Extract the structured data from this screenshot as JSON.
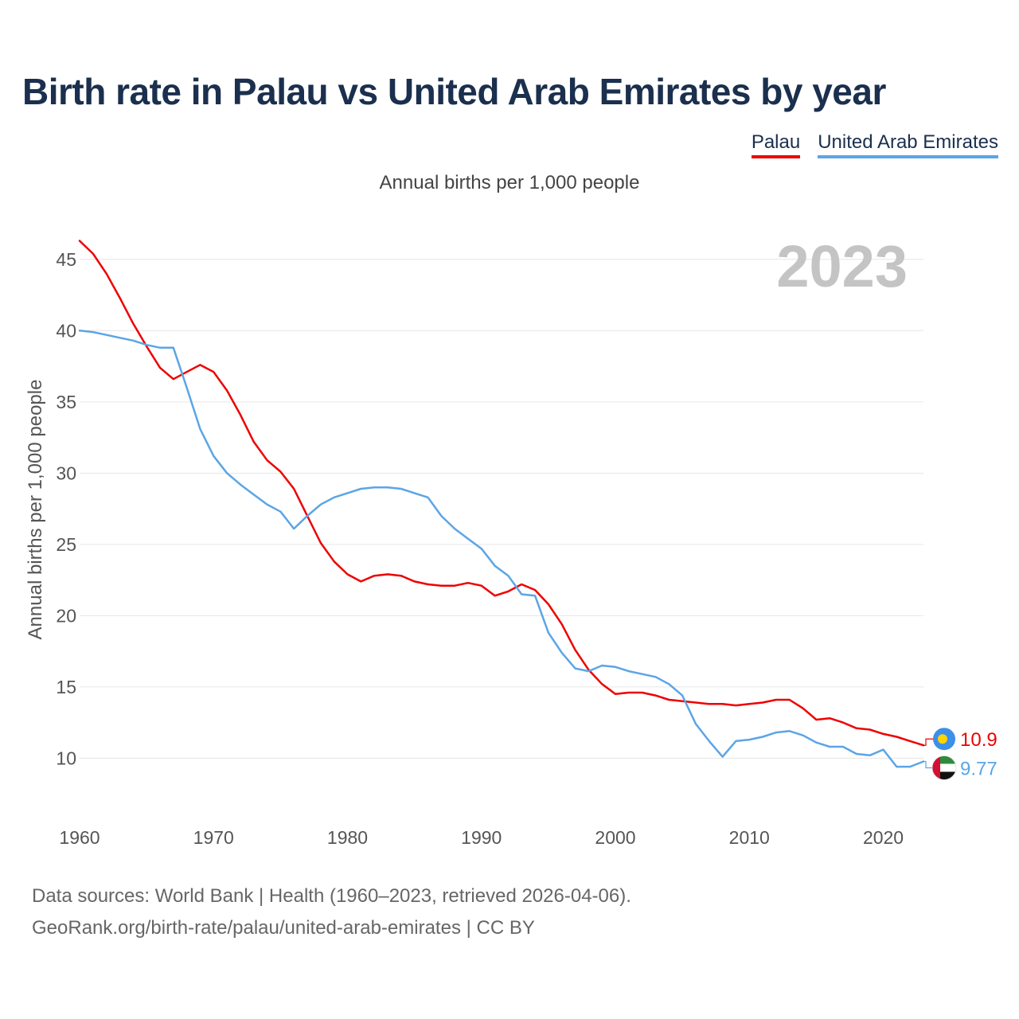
{
  "title": "Birth rate in Palau vs United Arab Emirates by year",
  "subtitle": "Annual births per 1,000 people",
  "legend": [
    {
      "name": "Palau",
      "color": "#ee0000"
    },
    {
      "name": "United Arab Emirates",
      "color": "#5ba5e6"
    }
  ],
  "year_stamp": "2023",
  "source_line1": "Data sources: World Bank | Health (1960–2023, retrieved 2026-04-06).",
  "source_line2": "GeoRank.org/birth-rate/palau/united-arab-emirates | CC BY",
  "chart_data": {
    "type": "line",
    "title": "Birth rate in Palau vs United Arab Emirates by year",
    "xlabel": "",
    "ylabel": "Annual births per 1,000 people",
    "xlim": [
      1960,
      2023
    ],
    "ylim": [
      6.5,
      47
    ],
    "xticks": [
      1960,
      1970,
      1980,
      1990,
      2000,
      2010,
      2020
    ],
    "yticks": [
      10,
      15,
      20,
      25,
      30,
      35,
      40,
      45
    ],
    "grid": true,
    "legend_position": "top-right",
    "x": [
      1960,
      1961,
      1962,
      1963,
      1964,
      1965,
      1966,
      1967,
      1968,
      1969,
      1970,
      1971,
      1972,
      1973,
      1974,
      1975,
      1976,
      1977,
      1978,
      1979,
      1980,
      1981,
      1982,
      1983,
      1984,
      1985,
      1986,
      1987,
      1988,
      1989,
      1990,
      1991,
      1992,
      1993,
      1994,
      1995,
      1996,
      1997,
      1998,
      1999,
      2000,
      2001,
      2002,
      2003,
      2004,
      2005,
      2006,
      2007,
      2008,
      2009,
      2010,
      2011,
      2012,
      2013,
      2014,
      2015,
      2016,
      2017,
      2018,
      2019,
      2020,
      2021,
      2022,
      2023
    ],
    "series": [
      {
        "name": "Palau",
        "color": "#ee0000",
        "values": [
          46.3,
          45.4,
          44.0,
          42.3,
          40.5,
          38.9,
          37.4,
          36.6,
          37.1,
          37.6,
          37.1,
          35.8,
          34.1,
          32.2,
          30.9,
          30.1,
          28.9,
          27.0,
          25.1,
          23.8,
          22.9,
          22.4,
          22.8,
          22.9,
          22.8,
          22.4,
          22.2,
          22.1,
          22.1,
          22.3,
          22.1,
          21.4,
          21.7,
          22.2,
          21.8,
          20.8,
          19.4,
          17.6,
          16.2,
          15.2,
          14.5,
          14.6,
          14.6,
          14.4,
          14.1,
          14.0,
          13.9,
          13.8,
          13.8,
          13.7,
          13.8,
          13.9,
          14.1,
          14.1,
          13.5,
          12.7,
          12.8,
          12.5,
          12.1,
          12.0,
          11.7,
          11.5,
          11.2,
          10.9
        ]
      },
      {
        "name": "United Arab Emirates",
        "color": "#5ba5e6",
        "values": [
          40.0,
          39.9,
          39.7,
          39.5,
          39.3,
          39.0,
          38.8,
          38.8,
          36.0,
          33.1,
          31.2,
          30.0,
          29.2,
          28.5,
          27.8,
          27.3,
          26.1,
          27.0,
          27.8,
          28.3,
          28.6,
          28.9,
          29.0,
          29.0,
          28.9,
          28.6,
          28.3,
          27.0,
          26.1,
          25.4,
          24.7,
          23.5,
          22.8,
          21.5,
          21.4,
          18.8,
          17.4,
          16.3,
          16.1,
          16.5,
          16.4,
          16.1,
          15.9,
          15.7,
          15.2,
          14.4,
          12.4,
          11.2,
          10.1,
          11.2,
          11.3,
          11.5,
          11.8,
          11.9,
          11.6,
          11.1,
          10.8,
          10.8,
          10.3,
          10.2,
          10.6,
          9.4,
          9.4,
          9.77
        ]
      }
    ],
    "end_labels": [
      "10.9",
      "9.77"
    ]
  }
}
